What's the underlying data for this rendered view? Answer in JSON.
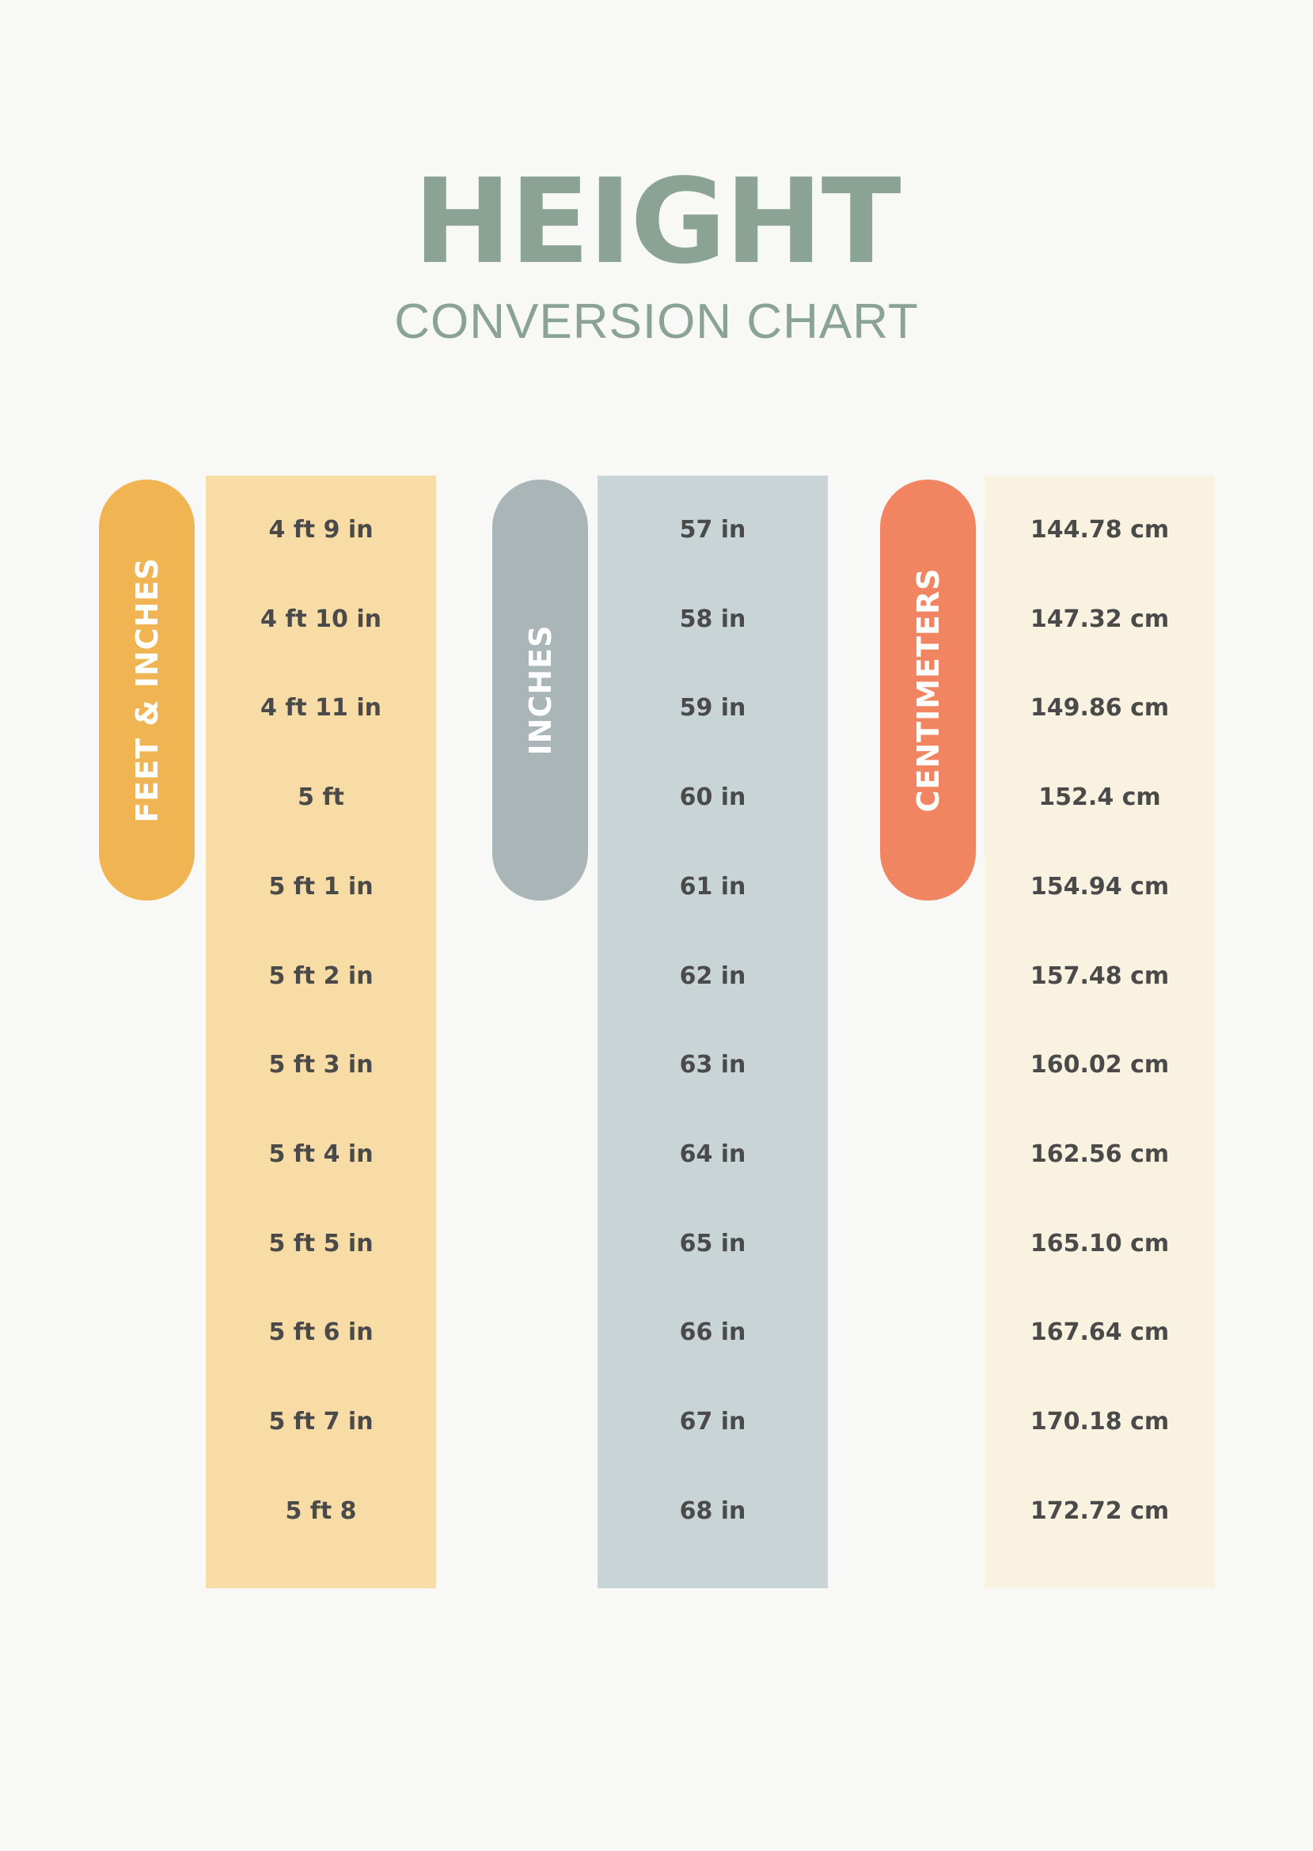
{
  "title": "HEIGHT",
  "subtitle": "CONVERSION CHART",
  "colors": {
    "background": "#f8f8f7",
    "title": "#8ba394",
    "text": "#4a4a4a"
  },
  "columns": [
    {
      "header": "FEET & INCHES",
      "pill_color": "#f0b552",
      "column_color": "#f7dca5",
      "values": [
        "4 ft 9 in",
        "4 ft 10 in",
        "4 ft 11 in",
        "5 ft",
        "5 ft 1 in",
        "5 ft 2 in",
        "5 ft 3 in",
        "5 ft 4 in",
        "5 ft 5 in",
        "5 ft 6 in",
        "5 ft 7 in",
        "5 ft 8"
      ]
    },
    {
      "header": "INCHES",
      "pill_color": "#a9b5b6",
      "column_color": "#c9d4d6",
      "values": [
        "57 in",
        "58 in",
        "59 in",
        "60 in",
        "61 in",
        "62 in",
        "63 in",
        "64 in",
        "65 in",
        "66 in",
        "67 in",
        "68 in"
      ]
    },
    {
      "header": "CENTIMETERS",
      "pill_color": "#f28561",
      "column_color": "#faf2e0",
      "values": [
        "144.78 cm",
        "147.32 cm",
        "149.86 cm",
        "152.4 cm",
        "154.94 cm",
        "157.48 cm",
        "160.02 cm",
        "162.56 cm",
        "165.10 cm",
        "167.64 cm",
        "170.18 cm",
        "172.72 cm"
      ]
    }
  ]
}
